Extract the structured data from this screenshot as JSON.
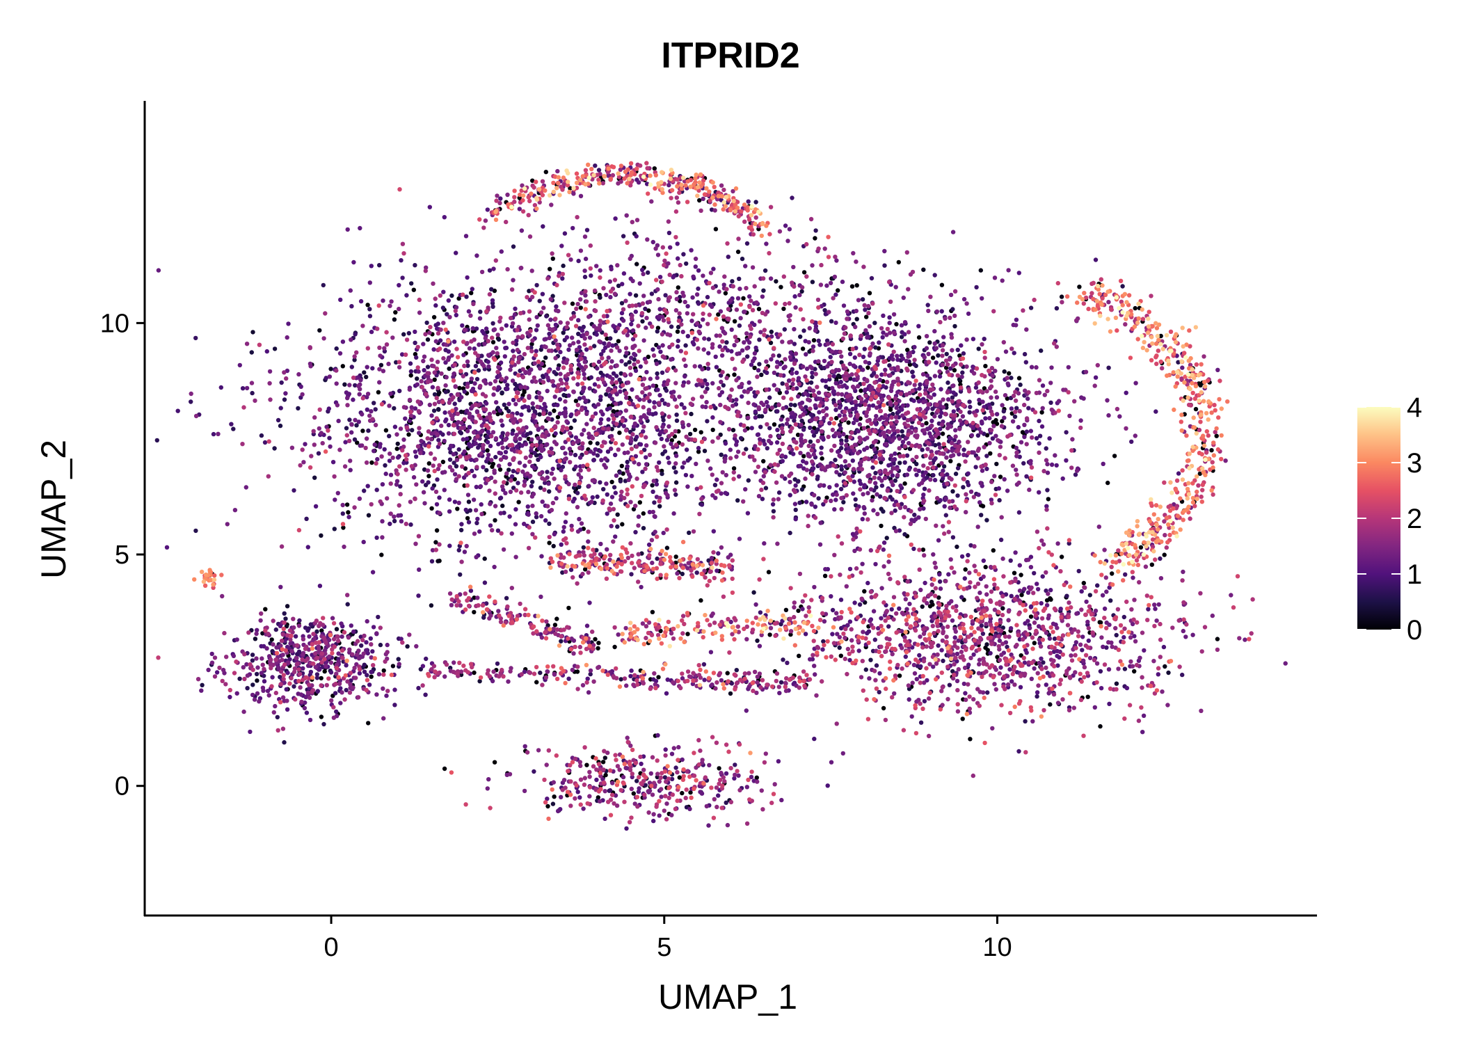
{
  "chart_data": {
    "type": "scatter",
    "title": "ITPRID2",
    "xlabel": "UMAP_1",
    "ylabel": "UMAP_2",
    "xlim": [
      -2.8,
      14.8
    ],
    "ylim": [
      -2.8,
      14.8
    ],
    "xticks": [
      0,
      5,
      10
    ],
    "yticks": [
      0,
      5,
      10
    ],
    "xtick_labels": [
      "0",
      "5",
      "10"
    ],
    "ytick_labels": [
      "0",
      "5",
      "10"
    ],
    "grid": false,
    "legend": {
      "type": "colorbar",
      "placement": "right",
      "min": 0,
      "max": 4,
      "ticks": [
        0,
        1,
        2,
        3,
        4
      ],
      "tick_labels": [
        "0",
        "1",
        "2",
        "3",
        "4"
      ],
      "colormap": [
        "#000004",
        "#1d1147",
        "#51127c",
        "#822681",
        "#b63679",
        "#e65164",
        "#fb8861",
        "#fec287",
        "#fcfdbf"
      ]
    },
    "point_groups": [
      {
        "shape": "gauss",
        "cx": 3.0,
        "cy": 8.0,
        "sx": 1.7,
        "sy": 1.35,
        "n": 2400,
        "mean": 1.2,
        "sd": 0.5
      },
      {
        "shape": "gauss",
        "cx": 8.4,
        "cy": 8.0,
        "sx": 1.3,
        "sy": 1.2,
        "n": 2000,
        "mean": 1.2,
        "sd": 0.45
      },
      {
        "shape": "gauss",
        "cx": 5.4,
        "cy": 10.4,
        "sx": 1.6,
        "sy": 0.9,
        "n": 500,
        "mean": 1.3,
        "sd": 0.55
      },
      {
        "shape": "arc",
        "cx": 4.4,
        "cy": 10.6,
        "r": 2.5,
        "ry": 2.6,
        "a0": 35,
        "a1": 140,
        "w": 0.15,
        "n": 380,
        "mean": 2.2,
        "sd": 0.8
      },
      {
        "shape": "arc",
        "cx": 10.6,
        "cy": 7.6,
        "r": 2.5,
        "ry": 3.1,
        "a0": -65,
        "a1": 75,
        "w": 0.18,
        "n": 520,
        "mean": 2.6,
        "sd": 0.7
      },
      {
        "shape": "gauss",
        "cx": 9.7,
        "cy": 3.2,
        "sx": 1.5,
        "sy": 0.85,
        "n": 1300,
        "mean": 1.6,
        "sd": 0.6
      },
      {
        "shape": "gauss",
        "cx": -0.3,
        "cy": 2.7,
        "sx": 0.6,
        "sy": 0.55,
        "n": 600,
        "mean": 1.3,
        "sd": 0.55
      },
      {
        "shape": "gauss",
        "cx": 4.6,
        "cy": 0.1,
        "sx": 0.95,
        "sy": 0.4,
        "n": 380,
        "mean": 1.6,
        "sd": 0.6
      },
      {
        "shape": "band",
        "x0": 1.4,
        "x1": 7.2,
        "y0": 2.5,
        "y1": 2.2,
        "w": 0.12,
        "n": 260,
        "mean": 1.6,
        "sd": 0.6
      },
      {
        "shape": "band",
        "x0": 1.8,
        "x1": 4.0,
        "y0": 4.1,
        "y1": 3.0,
        "w": 0.15,
        "n": 150,
        "mean": 1.7,
        "sd": 0.6
      },
      {
        "shape": "band",
        "x0": 4.3,
        "x1": 7.2,
        "y0": 3.3,
        "y1": 3.5,
        "w": 0.15,
        "n": 160,
        "mean": 2.4,
        "sd": 0.8
      },
      {
        "shape": "band",
        "x0": 3.4,
        "x1": 6.0,
        "y0": 4.9,
        "y1": 4.7,
        "w": 0.18,
        "n": 220,
        "mean": 2.0,
        "sd": 0.7
      },
      {
        "shape": "gauss",
        "cx": -1.85,
        "cy": 4.5,
        "sx": 0.08,
        "sy": 0.12,
        "n": 25,
        "mean": 3.0,
        "sd": 0.4
      }
    ]
  }
}
